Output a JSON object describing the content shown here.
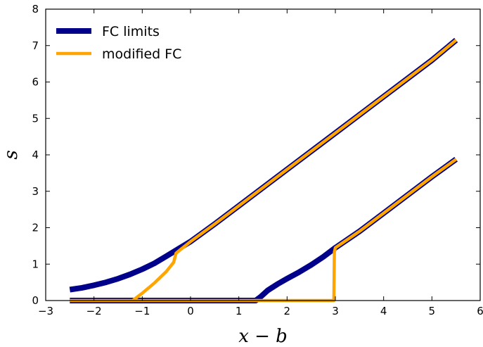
{
  "chart_data": {
    "type": "line",
    "xlabel": "x − b",
    "ylabel": "s",
    "xlim": [
      -3,
      6
    ],
    "ylim": [
      0,
      8
    ],
    "xticks": [
      -3,
      -2,
      -1,
      0,
      1,
      2,
      3,
      4,
      5,
      6
    ],
    "yticks": [
      0,
      1,
      2,
      3,
      4,
      5,
      6,
      7,
      8
    ],
    "xtick_labels": [
      "−3",
      "−2",
      "−1",
      "0",
      "1",
      "2",
      "3",
      "4",
      "5",
      "6"
    ],
    "ytick_labels": [
      "0",
      "1",
      "2",
      "3",
      "4",
      "5",
      "6",
      "7",
      "8"
    ],
    "grid": false,
    "legend_position": "top-left",
    "series": [
      {
        "name": "FC limits",
        "color": "#00008b",
        "part": "lower",
        "points": [
          [
            -2.5,
            0.0
          ],
          [
            1.35,
            0.0
          ],
          [
            1.45,
            0.1
          ],
          [
            1.6,
            0.28
          ],
          [
            1.8,
            0.45
          ],
          [
            2.0,
            0.6
          ],
          [
            2.25,
            0.78
          ],
          [
            2.5,
            0.98
          ],
          [
            2.75,
            1.2
          ],
          [
            3.0,
            1.45
          ],
          [
            3.5,
            1.9
          ],
          [
            4.0,
            2.4
          ],
          [
            4.5,
            2.9
          ],
          [
            5.0,
            3.4
          ],
          [
            5.5,
            3.88
          ]
        ]
      },
      {
        "name": "FC limits",
        "color": "#00008b",
        "part": "upper",
        "points": [
          [
            -2.5,
            0.3
          ],
          [
            -2.25,
            0.35
          ],
          [
            -2.0,
            0.42
          ],
          [
            -1.75,
            0.5
          ],
          [
            -1.5,
            0.6
          ],
          [
            -1.25,
            0.72
          ],
          [
            -1.0,
            0.86
          ],
          [
            -0.75,
            1.02
          ],
          [
            -0.5,
            1.22
          ],
          [
            -0.25,
            1.42
          ],
          [
            0.0,
            1.62
          ],
          [
            0.5,
            2.1
          ],
          [
            1.0,
            2.6
          ],
          [
            2.0,
            3.6
          ],
          [
            3.0,
            4.6
          ],
          [
            4.0,
            5.6
          ],
          [
            5.0,
            6.6
          ],
          [
            5.5,
            7.15
          ]
        ]
      },
      {
        "name": "modified FC",
        "color": "#ffa500",
        "part": "lower",
        "points": [
          [
            -2.5,
            0.0
          ],
          [
            2.97,
            0.0
          ],
          [
            2.98,
            1.33
          ],
          [
            3.0,
            1.45
          ],
          [
            3.5,
            1.9
          ],
          [
            4.0,
            2.4
          ],
          [
            4.5,
            2.9
          ],
          [
            5.0,
            3.4
          ],
          [
            5.5,
            3.88
          ]
        ]
      },
      {
        "name": "modified FC",
        "color": "#ffa500",
        "part": "upper",
        "points": [
          [
            -1.2,
            0.0
          ],
          [
            -1.0,
            0.2
          ],
          [
            -0.75,
            0.48
          ],
          [
            -0.5,
            0.8
          ],
          [
            -0.35,
            1.05
          ],
          [
            -0.3,
            1.3
          ],
          [
            0.0,
            1.62
          ],
          [
            0.5,
            2.1
          ],
          [
            1.0,
            2.6
          ],
          [
            2.0,
            3.6
          ],
          [
            3.0,
            4.6
          ],
          [
            4.0,
            5.6
          ],
          [
            5.0,
            6.6
          ],
          [
            5.5,
            7.15
          ]
        ]
      }
    ],
    "legend": [
      {
        "name": "FC limits",
        "color": "#00008b"
      },
      {
        "name": "modified FC",
        "color": "#ffa500"
      }
    ]
  }
}
